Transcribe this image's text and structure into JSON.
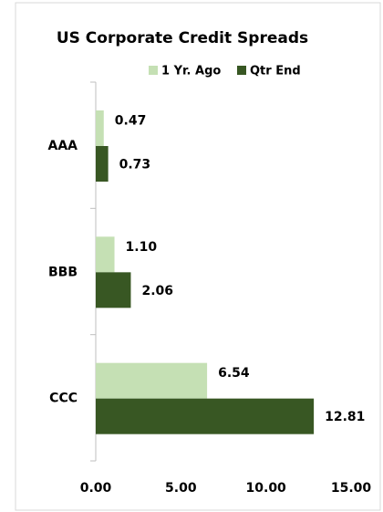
{
  "chart_data": {
    "type": "hbar",
    "title": "US Corporate Credit Spreads",
    "categories": [
      "AAA",
      "BBB",
      "CCC"
    ],
    "series": [
      {
        "name": "1 Yr. Ago",
        "color": "#c5e0b4",
        "values": [
          0.47,
          1.1,
          6.54
        ],
        "value_labels": [
          "0.47",
          "1.10",
          "6.54"
        ]
      },
      {
        "name": "Qtr End",
        "color": "#385723",
        "values": [
          0.73,
          2.06,
          12.81
        ],
        "value_labels": [
          "0.73",
          "2.06",
          "12.81"
        ]
      }
    ],
    "xlim": [
      0,
      15
    ],
    "xticks": [
      {
        "value": 0,
        "label": "0.00"
      },
      {
        "value": 5,
        "label": "5.00"
      },
      {
        "value": 10,
        "label": "10.00"
      },
      {
        "value": 15,
        "label": "15.00"
      }
    ],
    "grid": false
  }
}
